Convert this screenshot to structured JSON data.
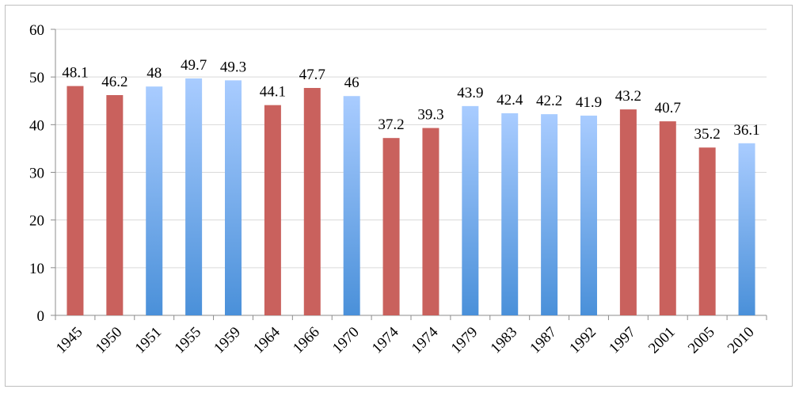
{
  "chart_data": {
    "type": "bar",
    "title": "",
    "xlabel": "",
    "ylabel": "",
    "ylim": [
      0,
      60
    ],
    "yticks": [
      0,
      10,
      20,
      30,
      40,
      50,
      60
    ],
    "grid": true,
    "legend": "none",
    "categories": [
      "1945",
      "1950",
      "1951",
      "1955",
      "1959",
      "1964",
      "1966",
      "1970",
      "1974",
      "1974",
      "1979",
      "1983",
      "1987",
      "1992",
      "1997",
      "2001",
      "2005",
      "2010"
    ],
    "values": [
      48.1,
      46.2,
      48,
      49.7,
      49.3,
      44.1,
      47.7,
      46,
      37.2,
      39.3,
      43.9,
      42.4,
      42.2,
      41.9,
      43.2,
      40.7,
      35.2,
      36.1
    ],
    "value_labels": [
      "48.1",
      "46.2",
      "48",
      "49.7",
      "49.3",
      "44.1",
      "47.7",
      "46",
      "37.2",
      "39.3",
      "43.9",
      "42.4",
      "42.2",
      "41.9",
      "43.2",
      "40.7",
      "35.2",
      "36.1"
    ],
    "bar_colors": [
      "red",
      "red",
      "blue",
      "blue",
      "blue",
      "red",
      "red",
      "blue",
      "red",
      "red",
      "blue",
      "blue",
      "blue",
      "blue",
      "red",
      "red",
      "red",
      "blue"
    ],
    "colors": {
      "red": "#c9615d",
      "blue_top": "#a9ccff",
      "blue_bottom": "#4a90d9",
      "grid": "#d9d9d9",
      "axis": "#8c8c8c"
    }
  }
}
